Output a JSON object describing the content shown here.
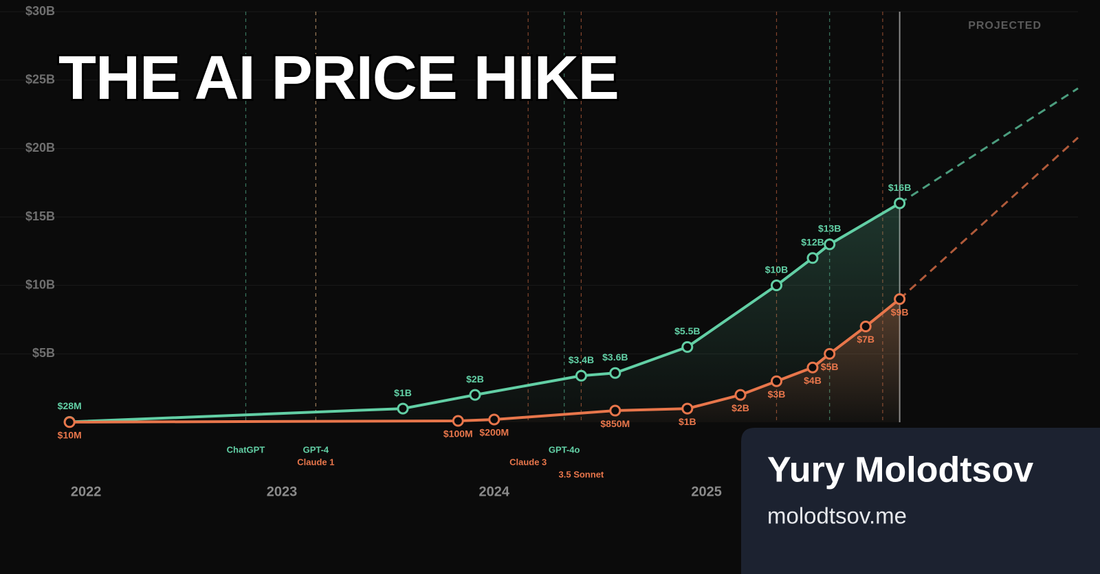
{
  "chart_data": {
    "type": "line",
    "title": "THE AI PRICE HIKE",
    "xlim": [
      2021.98,
      2026.75
    ],
    "xticks": [
      2022,
      2023,
      2024,
      2025
    ],
    "ylim": [
      0,
      30
    ],
    "yticks": [
      {
        "value": 5,
        "label": "$5B"
      },
      {
        "value": 10,
        "label": "$10B"
      },
      {
        "value": 15,
        "label": "$15B"
      },
      {
        "value": 20,
        "label": "$20B"
      },
      {
        "value": 25,
        "label": "$25B"
      },
      {
        "value": 30,
        "label": "$30B"
      }
    ],
    "grid": true,
    "series": [
      {
        "color": "#62cfa5",
        "label_side": "above",
        "x": [
          2022.0,
          2023.57,
          2023.91,
          2024.41,
          2024.57,
          2024.91,
          2025.33,
          2025.5,
          2025.58,
          2025.91
        ],
        "values": [
          0.028,
          1,
          2,
          3.4,
          3.6,
          5.5,
          10,
          12,
          13,
          16
        ],
        "value_labels": [
          "$28M",
          "$1B",
          "$2B",
          "$3.4B",
          "$3.6B",
          "$5.5B",
          "$10B",
          "$12B",
          "$13B",
          "$16B"
        ]
      },
      {
        "color": "#e8764b",
        "label_side": "below",
        "x": [
          2022.0,
          2023.83,
          2024.0,
          2024.57,
          2024.91,
          2025.16,
          2025.33,
          2025.5,
          2025.58,
          2025.75,
          2025.91
        ],
        "values": [
          0.01,
          0.1,
          0.2,
          0.85,
          1,
          2,
          3,
          4,
          5,
          7,
          9
        ],
        "value_labels": [
          "$10M",
          "$100M",
          "$200M",
          "$850M",
          "$1B",
          "$2B",
          "$3B",
          "$4B",
          "$5B",
          "$7B",
          "$9B"
        ]
      },
      {
        "color": "#62cfa5",
        "dashed": true,
        "x": [
          2025.91,
          2026.75
        ],
        "values": [
          16,
          24.4
        ]
      },
      {
        "color": "#e8764b",
        "dashed": true,
        "x": [
          2025.91,
          2026.75
        ],
        "values": [
          9,
          20.8
        ]
      }
    ],
    "events": [
      {
        "x": 2022.83,
        "label": "ChatGPT",
        "color": "#62cfa5"
      },
      {
        "x": 2023.16,
        "label": "GPT-4",
        "color": "#62cfa5"
      },
      {
        "x": 2023.16,
        "label": "Claude 1",
        "color": "#e8764b"
      },
      {
        "x": 2024.16,
        "label": "Claude 3",
        "color": "#e8764b"
      },
      {
        "x": 2024.33,
        "label": "GPT-4o",
        "color": "#62cfa5"
      },
      {
        "x": 2024.41,
        "label": "3.5 Sonnet",
        "color": "#e8764b"
      },
      {
        "x": 2025.33,
        "label": null,
        "color": "#e8764b"
      },
      {
        "x": 2025.58,
        "label": null,
        "color": "#62cfa5"
      },
      {
        "x": 2025.83,
        "label": null,
        "color": "#e8764b"
      }
    ],
    "projected": {
      "x": 2025.91,
      "label": "PROJECTED"
    }
  },
  "card": {
    "name": "Yury Molodtsov",
    "site": "molodtsov.me"
  }
}
